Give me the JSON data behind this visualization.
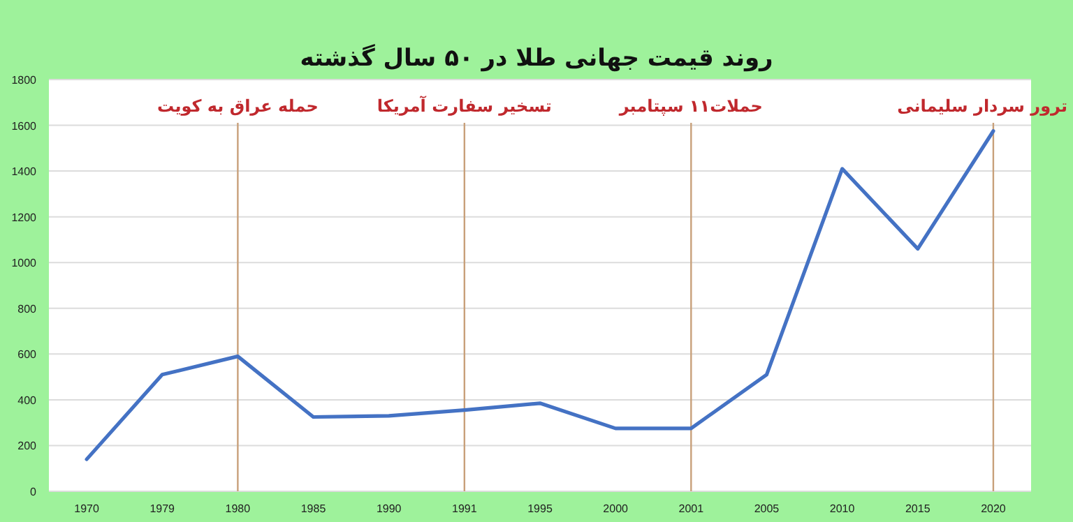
{
  "chart_data": {
    "type": "line",
    "title": "روند قیمت جهانی طلا در ۵۰ سال گذشته",
    "categories": [
      "1970",
      "1979",
      "1980",
      "1985",
      "1990",
      "1991",
      "1995",
      "2000",
      "2001",
      "2005",
      "2010",
      "2015",
      "2020"
    ],
    "series": [
      {
        "color": "#4472c4",
        "values": [
          140,
          510,
          590,
          325,
          330,
          355,
          385,
          275,
          275,
          510,
          1410,
          1060,
          1575
        ]
      }
    ],
    "ylim": [
      0,
      1800
    ],
    "yticks": [
      0,
      200,
      400,
      600,
      800,
      1000,
      1200,
      1400,
      1600,
      1800
    ],
    "grid": "y",
    "line_style": "solid",
    "ref_lines": [
      {
        "axis": "x",
        "value": "1980",
        "label": "حمله عراق به کویت",
        "color": "#c8a07a"
      },
      {
        "axis": "x",
        "value": "1991",
        "label": "تسخیر سفارت آمریکا",
        "color": "#c8a07a"
      },
      {
        "axis": "x",
        "value": "2001",
        "label": "حملات۱۱ سپتامبر",
        "color": "#c8a07a"
      },
      {
        "axis": "x",
        "value": "2020",
        "label": "ترور سردار سلیمانی",
        "color": "#c8a07a"
      }
    ]
  }
}
